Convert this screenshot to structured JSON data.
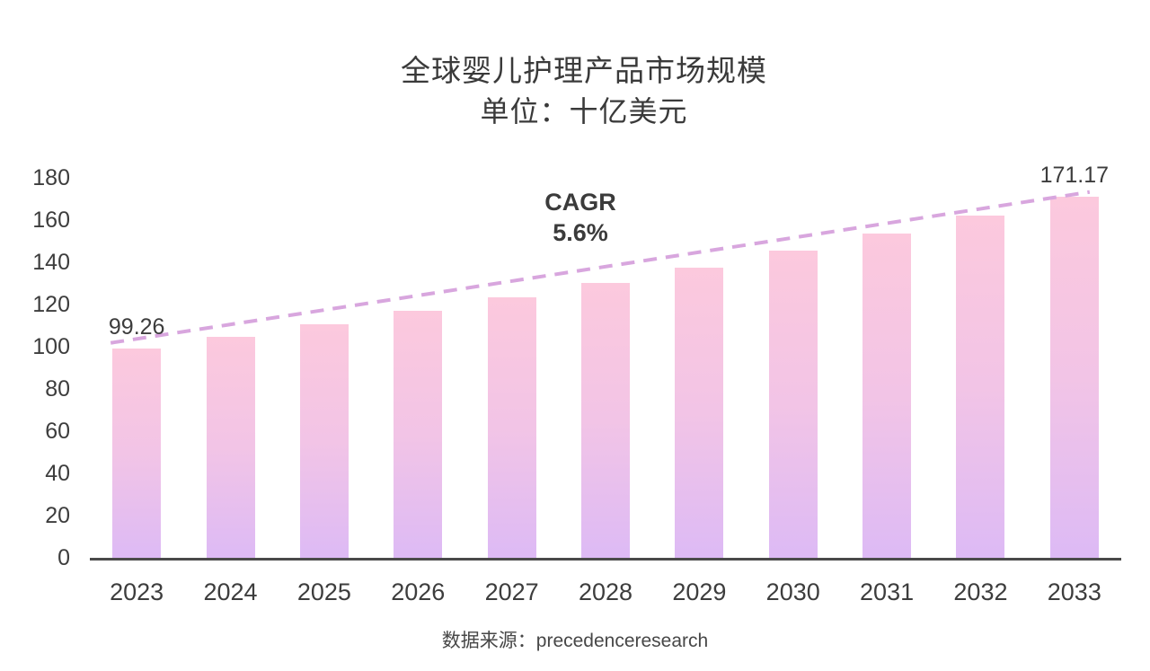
{
  "title": "全球婴儿护理产品市场规模",
  "subtitle": "单位：十亿美元",
  "source": "数据来源：precedenceresearch",
  "cagr": {
    "label": "CAGR",
    "value": "5.6%"
  },
  "colors": {
    "bar_gradient_top": "#fcc9dd",
    "bar_gradient_bottom": "#ddbaf5",
    "trendline": "#d8a6de",
    "axis_line": "#4a4a4a",
    "text": "#3a3a3a"
  },
  "chart_data": {
    "type": "bar",
    "title": "全球婴儿护理产品市场规模",
    "subtitle": "单位：十亿美元",
    "categories": [
      "2023",
      "2024",
      "2025",
      "2026",
      "2027",
      "2028",
      "2029",
      "2030",
      "2031",
      "2032",
      "2033"
    ],
    "values": [
      99.26,
      104.82,
      110.69,
      116.89,
      123.44,
      130.35,
      137.65,
      145.36,
      153.5,
      162.09,
      171.17
    ],
    "xlabel": "",
    "ylabel": "",
    "ylim": [
      0,
      180
    ],
    "ytick_interval": 20,
    "yticks": [
      0,
      20,
      40,
      60,
      80,
      100,
      120,
      140,
      160,
      180
    ],
    "grid": false,
    "legend": false,
    "data_labels": {
      "2023": "99.26",
      "2033": "171.17"
    },
    "annotation": "CAGR 5.6%",
    "trendline": {
      "style": "dashed",
      "from": "2023",
      "to": "2033"
    },
    "source": "数据来源：precedenceresearch"
  }
}
